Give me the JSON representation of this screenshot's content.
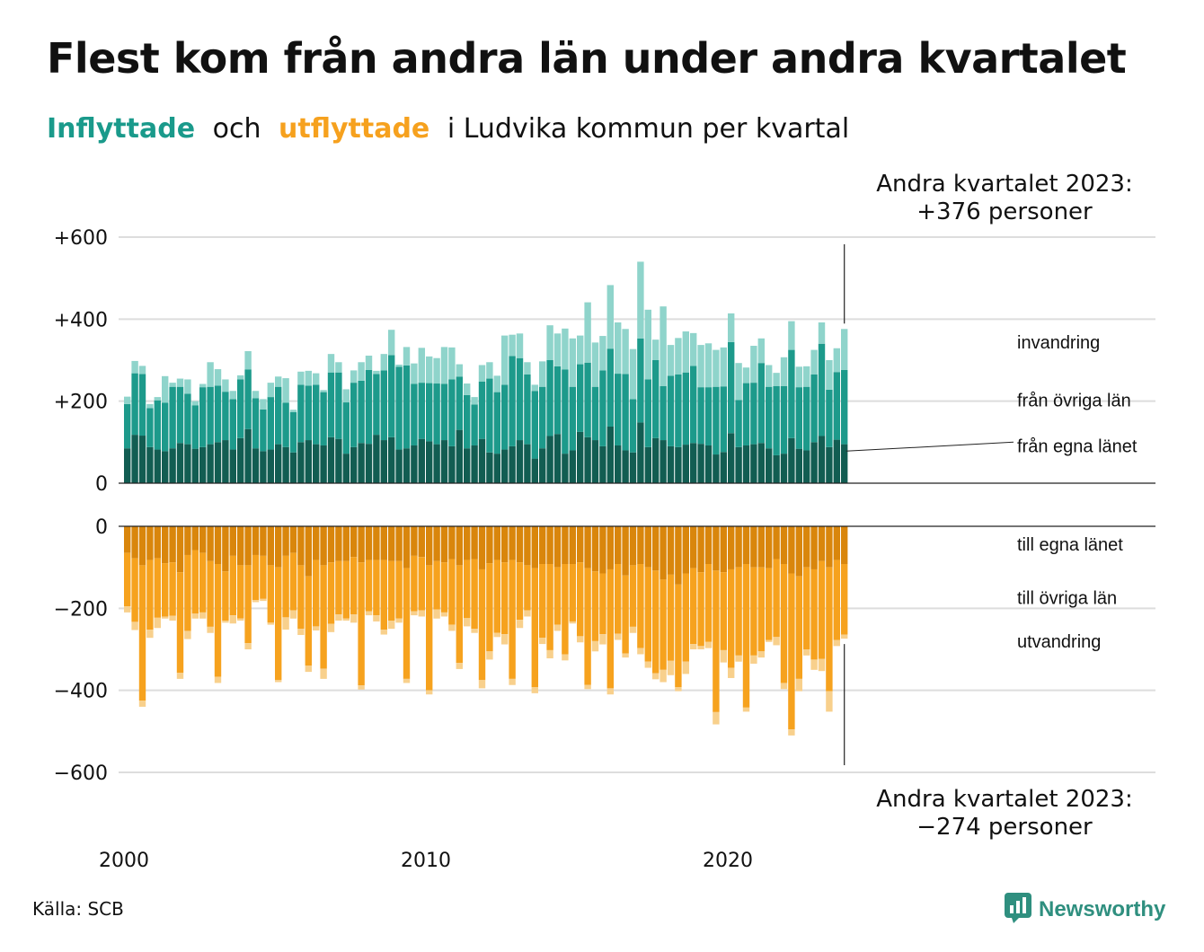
{
  "title": "Flest kom från andra län under andra kvartalet",
  "subtitle": {
    "in_label": "Inflyttade",
    "and": "och",
    "out_label": "utflyttade",
    "rest": "i Ludvika  kommun  per  kvartal"
  },
  "colors": {
    "in_own": "#125d52",
    "in_other": "#1d9a8b",
    "in_immig": "#8fd4cb",
    "out_own": "#d9860c",
    "out_other": "#f6a21e",
    "out_emig": "#f8d08c",
    "accent_teal": "#1a9a8b",
    "accent_orange": "#f6a11e"
  },
  "callouts": {
    "in_line1": "Andra kvartalet 2023:",
    "in_line2": "+376 personer",
    "out_line1": "Andra kvartalet 2023:",
    "out_line2": "−274 personer"
  },
  "source": "Källa: SCB",
  "logo": {
    "name": "Newsworthy",
    "icon": "chart-bubble-icon"
  },
  "chart_data": {
    "type": "bar",
    "stacked": true,
    "grid": true,
    "x_ticks": [
      "2000",
      "2010",
      "2020"
    ],
    "in_y_ticks": [
      "+600",
      "+400",
      "+200",
      "0"
    ],
    "in_y_values": [
      600,
      400,
      200,
      0
    ],
    "out_y_ticks": [
      "0",
      "−200",
      "−400",
      "−600"
    ],
    "out_y_values": [
      0,
      -200,
      -400,
      -600
    ],
    "ylim_in": [
      0,
      600
    ],
    "ylim_out": [
      -600,
      0
    ],
    "first_quarter": "2000 Q1",
    "last_quarter": "2023 Q2",
    "inflow": {
      "series_labels": [
        "från egna länet",
        "från övriga län",
        "invandring"
      ],
      "own_county": [
        85,
        118,
        116,
        88,
        82,
        78,
        85,
        98,
        95,
        84,
        88,
        95,
        100,
        105,
        82,
        110,
        132,
        85,
        78,
        82,
        95,
        88,
        75,
        100,
        105,
        95,
        92,
        112,
        108,
        72,
        88,
        98,
        96,
        118,
        105,
        112,
        82,
        85,
        92,
        108,
        102,
        95,
        105,
        90,
        130,
        85,
        92,
        108,
        75,
        72,
        82,
        90,
        105,
        95,
        60,
        85,
        115,
        120,
        72,
        80,
        125,
        112,
        105,
        90,
        138,
        92,
        80,
        75,
        148,
        88,
        110,
        105,
        90,
        88,
        94,
        98,
        96,
        92,
        70,
        76,
        122,
        88,
        92,
        95,
        98,
        85,
        68,
        72,
        110,
        84,
        80,
        100,
        115,
        88,
        106,
        95
      ],
      "other_counties": [
        108,
        150,
        150,
        95,
        120,
        118,
        150,
        137,
        123,
        106,
        146,
        140,
        138,
        118,
        123,
        143,
        145,
        122,
        102,
        128,
        140,
        108,
        98,
        140,
        133,
        145,
        130,
        158,
        162,
        125,
        157,
        152,
        180,
        148,
        170,
        200,
        202,
        202,
        150,
        137,
        142,
        148,
        137,
        163,
        130,
        130,
        100,
        140,
        180,
        150,
        158,
        220,
        200,
        170,
        165,
        150,
        185,
        165,
        205,
        155,
        165,
        182,
        130,
        185,
        190,
        175,
        186,
        130,
        205,
        165,
        190,
        132,
        172,
        177,
        176,
        188,
        138,
        142,
        165,
        160,
        222,
        115,
        152,
        150,
        195,
        150,
        169,
        165,
        215,
        150,
        155,
        165,
        225,
        140,
        165,
        181
      ],
      "immigration": [
        18,
        30,
        20,
        10,
        8,
        65,
        10,
        20,
        35,
        10,
        8,
        60,
        40,
        30,
        20,
        10,
        45,
        18,
        25,
        35,
        25,
        60,
        6,
        32,
        36,
        28,
        5,
        45,
        25,
        32,
        30,
        45,
        35,
        8,
        40,
        62,
        5,
        45,
        50,
        85,
        65,
        62,
        90,
        78,
        30,
        28,
        18,
        40,
        40,
        40,
        120,
        52,
        60,
        30,
        15,
        62,
        85,
        80,
        100,
        118,
        70,
        147,
        108,
        84,
        155,
        125,
        110,
        122,
        187,
        170,
        50,
        194,
        75,
        89,
        100,
        80,
        103,
        107,
        90,
        95,
        70,
        90,
        38,
        90,
        60,
        53,
        32,
        70,
        70,
        50,
        50,
        60,
        52,
        72,
        58,
        100
      ]
    },
    "outflow": {
      "series_labels": [
        "till egna länet",
        "till övriga län",
        "utvandring"
      ],
      "own_county": [
        65,
        78,
        95,
        82,
        78,
        90,
        88,
        112,
        70,
        58,
        65,
        85,
        92,
        110,
        72,
        95,
        95,
        70,
        72,
        95,
        100,
        72,
        65,
        95,
        122,
        82,
        95,
        88,
        85,
        85,
        75,
        88,
        82,
        82,
        82,
        85,
        85,
        102,
        72,
        75,
        95,
        85,
        88,
        80,
        95,
        82,
        80,
        105,
        90,
        82,
        88,
        82,
        88,
        95,
        102,
        92,
        92,
        100,
        92,
        92,
        88,
        102,
        110,
        115,
        105,
        92,
        120,
        95,
        92,
        100,
        108,
        130,
        118,
        142,
        115,
        102,
        112,
        92,
        108,
        112,
        105,
        100,
        92,
        100,
        100,
        102,
        80,
        92,
        115,
        122,
        100,
        105,
        85,
        100,
        82,
        92
      ],
      "other_counties": [
        130,
        155,
        330,
        170,
        145,
        130,
        130,
        245,
        185,
        155,
        145,
        160,
        275,
        120,
        145,
        130,
        190,
        110,
        105,
        140,
        275,
        150,
        140,
        155,
        218,
        162,
        252,
        150,
        130,
        140,
        140,
        300,
        125,
        135,
        170,
        145,
        140,
        270,
        135,
        130,
        305,
        118,
        122,
        160,
        238,
        142,
        170,
        270,
        215,
        178,
        175,
        290,
        140,
        110,
        290,
        180,
        210,
        140,
        220,
        140,
        180,
        285,
        170,
        148,
        290,
        170,
        190,
        150,
        205,
        230,
        250,
        220,
        210,
        250,
        215,
        185,
        180,
        190,
        345,
        190,
        240,
        215,
        350,
        215,
        205,
        175,
        190,
        290,
        380,
        250,
        200,
        220,
        238,
        302,
        195,
        172
      ],
      "emigration": [
        15,
        20,
        15,
        20,
        25,
        5,
        12,
        15,
        20,
        12,
        15,
        15,
        15,
        5,
        20,
        5,
        15,
        5,
        5,
        5,
        5,
        30,
        20,
        15,
        15,
        10,
        25,
        20,
        15,
        5,
        20,
        10,
        10,
        15,
        12,
        20,
        10,
        10,
        10,
        15,
        10,
        22,
        10,
        15,
        15,
        20,
        10,
        20,
        20,
        10,
        25,
        15,
        20,
        15,
        15,
        15,
        20,
        15,
        15,
        5,
        15,
        10,
        25,
        25,
        15,
        15,
        10,
        15,
        15,
        15,
        15,
        30,
        35,
        10,
        30,
        13,
        8,
        15,
        30,
        30,
        25,
        15,
        10,
        20,
        15,
        5,
        20,
        15,
        15,
        30,
        15,
        25,
        30,
        50,
        15,
        10
      ]
    },
    "annotations": {
      "in": [
        "invandring",
        "från övriga län",
        "från egna länet"
      ],
      "out": [
        "till egna länet",
        "till övriga län",
        "utvandring"
      ]
    }
  }
}
